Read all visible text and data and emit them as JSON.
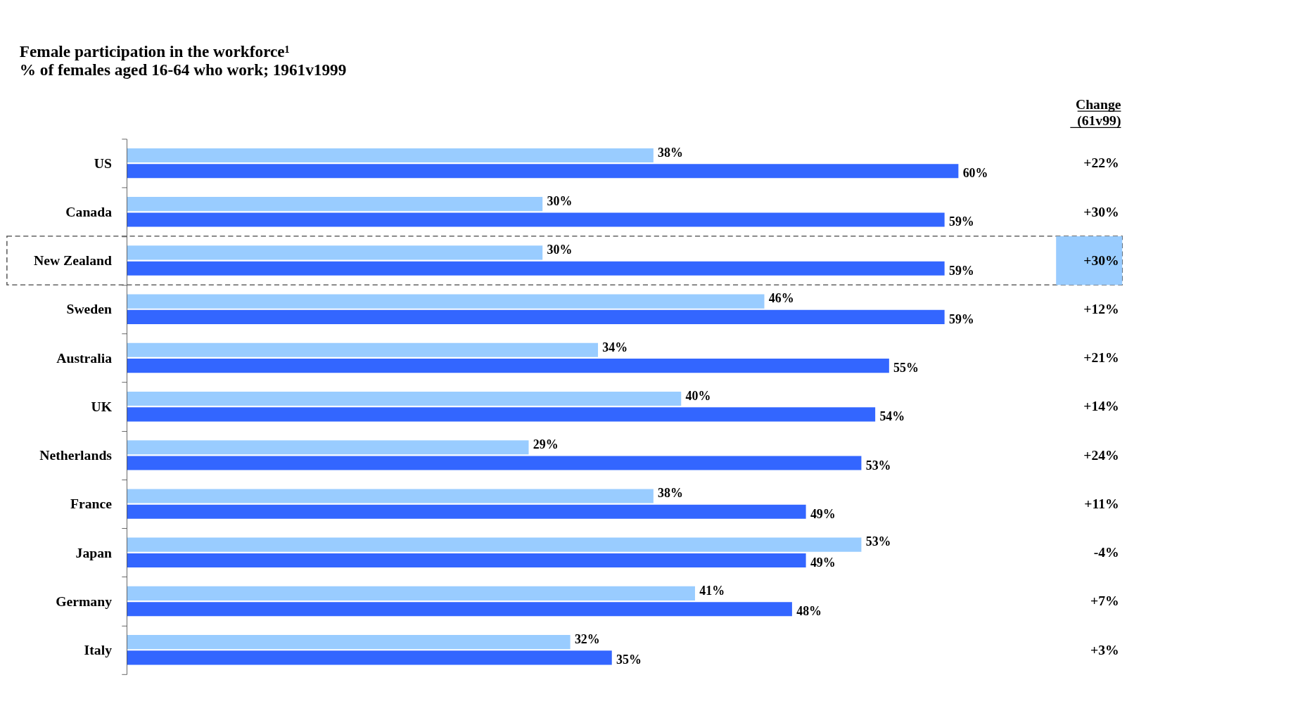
{
  "chart_data": {
    "type": "bar",
    "orientation": "horizontal",
    "title": "Female participation in the workforce¹",
    "subtitle": "% of females aged 16-64 who work; 1961v1999",
    "categories": [
      "US",
      "Canada",
      "New Zealand",
      "Sweden",
      "Australia",
      "UK",
      "Netherlands",
      "France",
      "Japan",
      "Germany",
      "Italy"
    ],
    "series": [
      {
        "color": "#99ccff",
        "values": [
          38,
          30,
          30,
          46,
          34,
          40,
          29,
          38,
          53,
          41,
          32
        ],
        "value_labels": [
          "38%",
          "30%",
          "30%",
          "46%",
          "34%",
          "40%",
          "29%",
          "38%",
          "53%",
          "41%",
          "32%"
        ]
      },
      {
        "color": "#3366ff",
        "values": [
          60,
          59,
          59,
          59,
          55,
          54,
          53,
          49,
          49,
          48,
          35
        ],
        "value_labels": [
          "60%",
          "59%",
          "59%",
          "59%",
          "55%",
          "54%",
          "53%",
          "49%",
          "49%",
          "48%",
          "35%"
        ]
      }
    ],
    "tick_labels": "y",
    "grid": false,
    "legend": false,
    "annotations": [
      "Change\n(61v99)",
      "+22%",
      "+30%",
      "+30%",
      "+12%",
      "+21%",
      "+14%",
      "+24%",
      "+11%",
      "-4%",
      "+7%",
      "+3%"
    ]
  }
}
